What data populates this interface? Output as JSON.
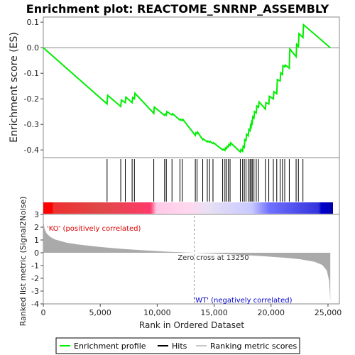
{
  "chart_data": {
    "type": "line",
    "title": "Enrichment plot: REACTOME_SNRNP_ASSEMBLY",
    "top_panel": {
      "ylabel": "Enrichment score (ES)",
      "ylim": [
        -0.43,
        0.12
      ],
      "yticks": [
        0.1,
        0.0,
        -0.1,
        -0.2,
        -0.3,
        -0.4
      ],
      "ytick_labels": [
        "0.1",
        "0.0",
        "-0.1",
        "-0.2",
        "-0.3",
        "-0.4"
      ],
      "series": [
        {
          "name": "Enrichment profile",
          "color": "#00ee00",
          "x": [
            0,
            5600,
            5650,
            6800,
            6850,
            7200,
            7250,
            7800,
            7850,
            8000,
            8050,
            9700,
            9750,
            10650,
            10700,
            10800,
            10850,
            11300,
            11350,
            12000,
            12050,
            12200,
            12250,
            13350,
            13400,
            13500,
            13550,
            14000,
            14050,
            14400,
            14450,
            14600,
            14650,
            14900,
            14950,
            15750,
            15800,
            15950,
            16000,
            16100,
            16150,
            16250,
            16300,
            16400,
            16450,
            17300,
            17350,
            17500,
            17550,
            17650,
            17700,
            17800,
            17850,
            18000,
            18050,
            18150,
            18200,
            18250,
            18300,
            18350,
            18400,
            18500,
            18550,
            18700,
            18750,
            18900,
            18950,
            19500,
            19550,
            19800,
            19850,
            20200,
            20250,
            20500,
            20550,
            20800,
            20850,
            21000,
            21050,
            21200,
            21250,
            21600,
            21650,
            22200,
            22250,
            22400,
            22450,
            22800,
            22850,
            25200
          ],
          "y": [
            0.0,
            -0.22,
            -0.186,
            -0.23,
            -0.205,
            -0.215,
            -0.193,
            -0.215,
            -0.195,
            -0.2,
            -0.178,
            -0.257,
            -0.232,
            -0.265,
            -0.26,
            -0.263,
            -0.25,
            -0.263,
            -0.258,
            -0.283,
            -0.28,
            -0.285,
            -0.28,
            -0.343,
            -0.333,
            -0.336,
            -0.33,
            -0.36,
            -0.357,
            -0.368,
            -0.365,
            -0.37,
            -0.367,
            -0.375,
            -0.372,
            -0.4,
            -0.397,
            -0.402,
            -0.392,
            -0.395,
            -0.385,
            -0.388,
            -0.378,
            -0.382,
            -0.372,
            -0.408,
            -0.398,
            -0.405,
            -0.385,
            -0.39,
            -0.36,
            -0.363,
            -0.338,
            -0.345,
            -0.32,
            -0.325,
            -0.305,
            -0.31,
            -0.29,
            -0.295,
            -0.27,
            -0.275,
            -0.25,
            -0.255,
            -0.228,
            -0.233,
            -0.212,
            -0.24,
            -0.215,
            -0.22,
            -0.19,
            -0.2,
            -0.172,
            -0.18,
            -0.125,
            -0.13,
            -0.098,
            -0.105,
            -0.07,
            -0.075,
            -0.068,
            -0.08,
            -0.005,
            -0.035,
            0.013,
            0.005,
            0.055,
            0.04,
            0.09,
            0.0
          ]
        }
      ]
    },
    "hits_panel": {
      "hits": [
        5600,
        6800,
        7200,
        7800,
        8000,
        9700,
        10650,
        10800,
        11300,
        12000,
        12200,
        13350,
        13500,
        14000,
        14400,
        14600,
        14900,
        15750,
        15950,
        16100,
        16250,
        16400,
        17300,
        17500,
        17650,
        17800,
        18000,
        18150,
        18250,
        18350,
        18500,
        18700,
        18900,
        19500,
        19800,
        20200,
        20500,
        20800,
        21000,
        21200,
        21600,
        22200,
        22400,
        22800
      ]
    },
    "bottom_panel": {
      "ylabel": "Ranked list metric (Signal2Noise)",
      "xlabel": "Rank in Ordered Dataset",
      "xlim": [
        0,
        26000
      ],
      "ylim": [
        -4,
        3
      ],
      "xticks": [
        0,
        5000,
        10000,
        15000,
        20000,
        25000
      ],
      "xtick_labels": [
        "0",
        "5,000",
        "10,000",
        "15,000",
        "20,000",
        "25,000"
      ],
      "yticks": [
        3,
        2,
        1,
        0,
        -1,
        -2,
        -3,
        -4
      ],
      "ytick_labels": [
        "3",
        "2",
        "1",
        "0",
        "-1",
        "-2",
        "-3",
        "-4"
      ],
      "metric_x": [
        0,
        100,
        300,
        600,
        1000,
        2000,
        3000,
        5000,
        7000,
        9000,
        11000,
        13250,
        15000,
        17000,
        19000,
        21000,
        22500,
        23800,
        24500,
        24900,
        25100,
        25200
      ],
      "metric_y": [
        2.6,
        1.9,
        1.5,
        1.25,
        1.05,
        0.8,
        0.65,
        0.45,
        0.3,
        0.18,
        0.08,
        0.0,
        -0.07,
        -0.15,
        -0.25,
        -0.38,
        -0.5,
        -0.7,
        -0.95,
        -1.4,
        -2.2,
        -3.8
      ],
      "zero_cross_label": "Zero cross at 13250",
      "zero_cross_x": 13250,
      "pos_label": "'KO' (positively correlated)",
      "neg_label": "'WT' (negatively correlated)"
    },
    "legend": {
      "placement": "bottom",
      "items": [
        {
          "label": "Enrichment profile",
          "color": "#00ee00"
        },
        {
          "label": "Hits",
          "color": "#000000"
        },
        {
          "label": "Ranking metric scores",
          "color": "#c8c8c8"
        }
      ]
    },
    "colors": {
      "profile": "#00ee00",
      "pos_strong": "#ff0000",
      "pos_light": "#ffc8e6",
      "neg_light": "#c8c8ff",
      "neg_strong": "#0000cc",
      "metric_fill": "#aaaaaa"
    }
  }
}
